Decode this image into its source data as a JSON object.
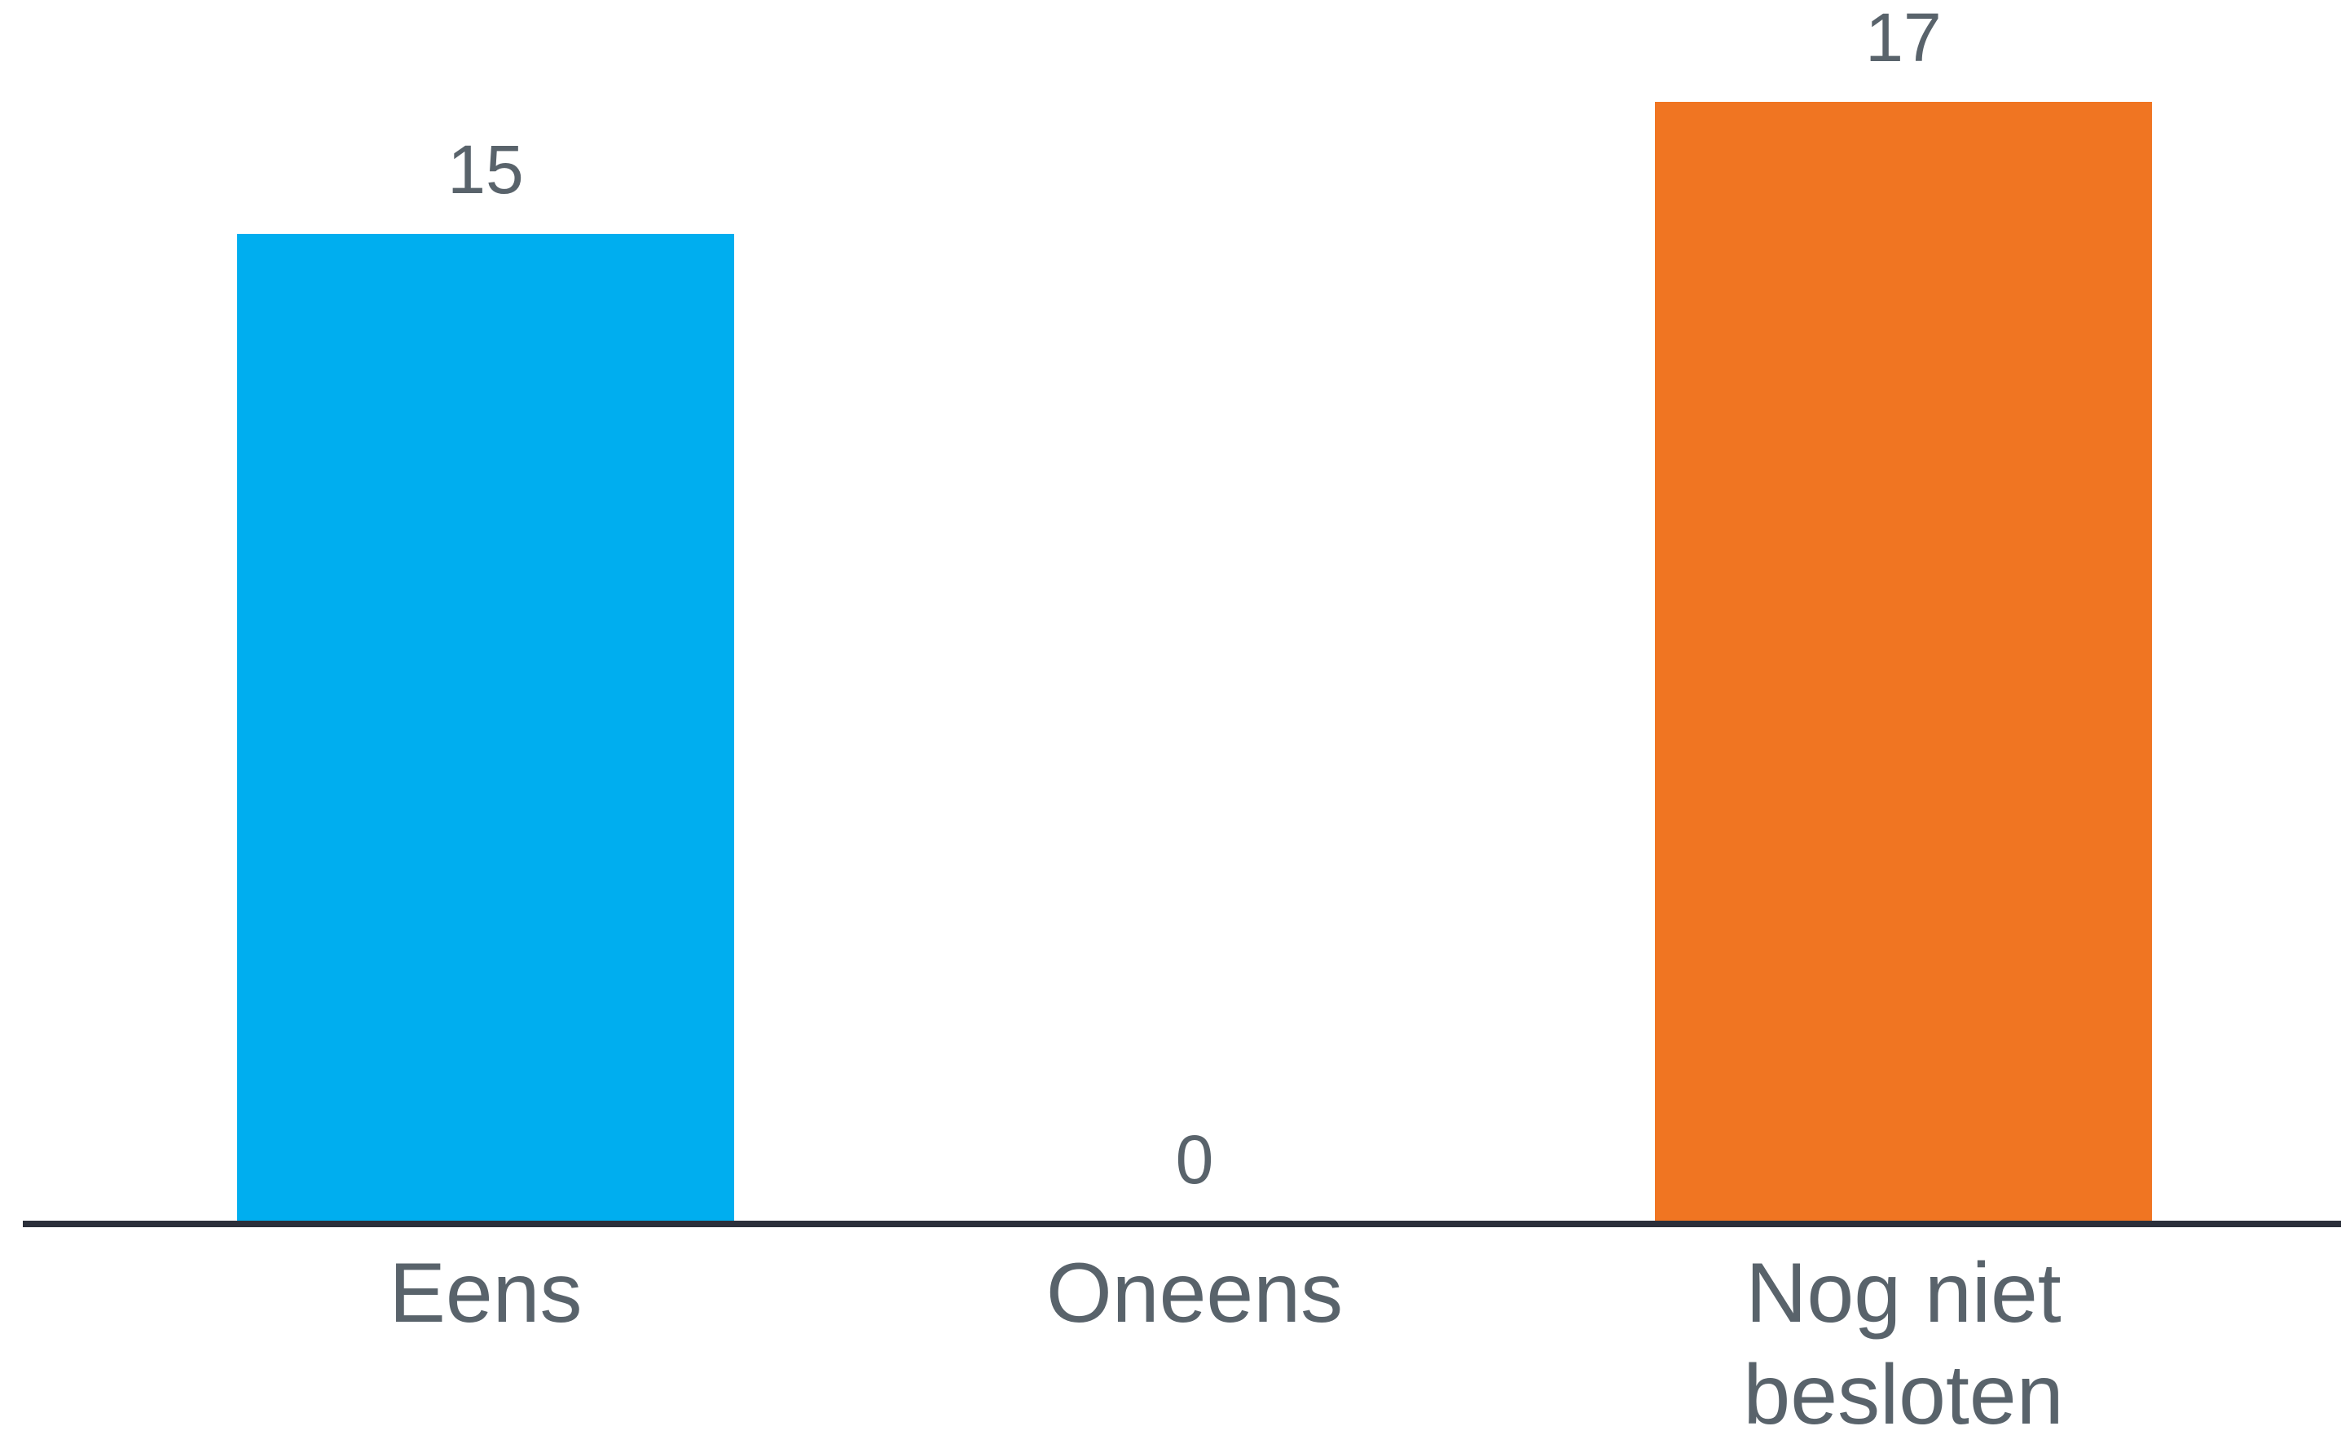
{
  "chart_data": {
    "type": "bar",
    "categories": [
      "Eens",
      "Oneens",
      "Nog niet besloten"
    ],
    "category_lines": [
      [
        "Eens"
      ],
      [
        "Oneens"
      ],
      [
        "Nog niet",
        "besloten"
      ]
    ],
    "values": [
      15,
      0,
      17
    ],
    "data_labels": [
      "15",
      "0",
      "17"
    ],
    "colors": [
      "#00aeef",
      "#00aeef",
      "#f07522"
    ],
    "axis_color": "#2b2f3a",
    "label_color": "#59636b",
    "title": "",
    "xlabel": "",
    "ylabel": "",
    "grid": false,
    "legend": "none"
  }
}
